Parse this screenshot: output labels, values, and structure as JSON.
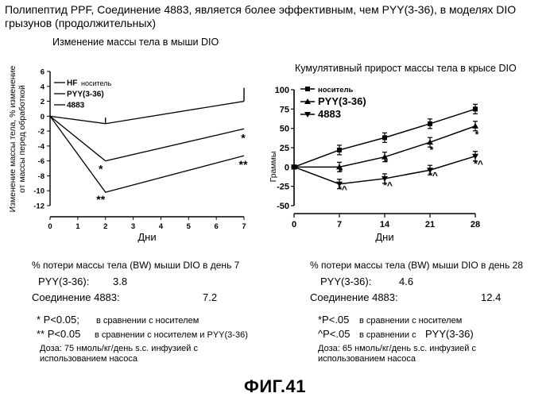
{
  "header": {
    "title": "Полипептид PPF, Соединение 4883, является более эффективным, чем PYY(3-36), в моделях DIO грызунов (продолжительных)"
  },
  "chart_data": [
    {
      "type": "line",
      "title": "Изменение массы тела в мыши DIO",
      "xlabel": "Дни",
      "ylabel": "Изменение массы тела, % изменение от массы перед обработкой",
      "xlim": [
        0,
        7
      ],
      "ylim": [
        -12,
        6
      ],
      "xticks": [
        "0",
        "1",
        "2",
        "3",
        "4",
        "5",
        "6",
        "7"
      ],
      "yticks": [
        "6",
        "4",
        "2",
        "0",
        "-2",
        "-4",
        "-6",
        "-8",
        "-10",
        "-12"
      ],
      "x": [
        0,
        2,
        7
      ],
      "series": [
        {
          "name": "HF носитель",
          "prefix": "HF",
          "suffix": "носитель",
          "values": [
            0,
            -1,
            2
          ],
          "errors": [
            0,
            0.8,
            1.8
          ]
        },
        {
          "name": "PYY(3-36)",
          "prefix": "PYY(3-36)",
          "suffix": "",
          "values": [
            0,
            -6,
            -1.7
          ]
        },
        {
          "name": "4883",
          "prefix": "4883",
          "suffix": "",
          "values": [
            0,
            -10.2,
            -5.3
          ]
        }
      ],
      "annotations": [
        {
          "text": "*",
          "x": 2,
          "y": -7.6
        },
        {
          "text": "**",
          "x": 2,
          "y": -11.7
        },
        {
          "text": "*",
          "x": 7,
          "y": -3.4
        },
        {
          "text": "**",
          "x": 7,
          "y": -7.0
        }
      ]
    },
    {
      "type": "line",
      "title": "Кумулятивный прирост массы тела в крысе DIO",
      "xlabel": "Дни",
      "ylabel": "Граммы",
      "xlim": [
        0,
        28
      ],
      "ylim": [
        -50,
        100
      ],
      "xticks": [
        "0",
        "7",
        "14",
        "21",
        "28"
      ],
      "yticks": [
        "100",
        "75",
        "50",
        "25",
        "0",
        "-25",
        "-50"
      ],
      "x": [
        0,
        7,
        14,
        21,
        28
      ],
      "series": [
        {
          "name": "носитель",
          "values": [
            0,
            22,
            38,
            56,
            75
          ]
        },
        {
          "name": "PYY(3-36)",
          "values": [
            0,
            0,
            13,
            32,
            53
          ]
        },
        {
          "name": "4883",
          "values": [
            0,
            -22,
            -15,
            -4,
            14
          ]
        }
      ],
      "annotations": [
        {
          "text": "*",
          "x": 7,
          "y": -10
        },
        {
          "text": "*^",
          "x": 7,
          "y": -33
        },
        {
          "text": "*",
          "x": 14,
          "y": 2
        },
        {
          "text": "*^",
          "x": 14,
          "y": -28
        },
        {
          "text": "*",
          "x": 21,
          "y": 18
        },
        {
          "text": "*^",
          "x": 21,
          "y": -15
        },
        {
          "text": "*",
          "x": 28,
          "y": 38
        },
        {
          "text": "*^",
          "x": 28,
          "y": 0
        }
      ]
    }
  ],
  "left_summary": {
    "heading": "% потери массы тела (BW) мыши DIO в день 7",
    "row1_label": "PYY(3-36):",
    "row1_value": "3.8",
    "row2_label": "Соединение 4883:",
    "row2_value": "7.2",
    "note1_mark": "* P<0.05;",
    "note1_text": "в сравнении с носителем",
    "note2_mark": "** P<0.05",
    "note2_text": "в сравнении с носителем и PYY(3-36)",
    "dose_line1": "Доза: 75 нмоль/кг/день s.c. инфузией с",
    "dose_line2": "использованием насоса"
  },
  "right_summary": {
    "heading": "% потери массы тела (BW) мыши DIO в день 28",
    "row1_label": "PYY(3-36):",
    "row1_value": "4.6",
    "row2_label": "Соединение 4883:",
    "row2_value": "12.4",
    "note1_mark": "*P<.05",
    "note1_text": "в сравнении с носителем",
    "note2_mark": "^P<.05",
    "note2_text": "в сравнении с",
    "note2_tail": "PYY(3-36)",
    "dose_line1": "Доза: 65 нмоль/кг/день s.c. инфузией с",
    "dose_line2": "использованием насоса"
  },
  "figure_label": "ФИГ.41"
}
